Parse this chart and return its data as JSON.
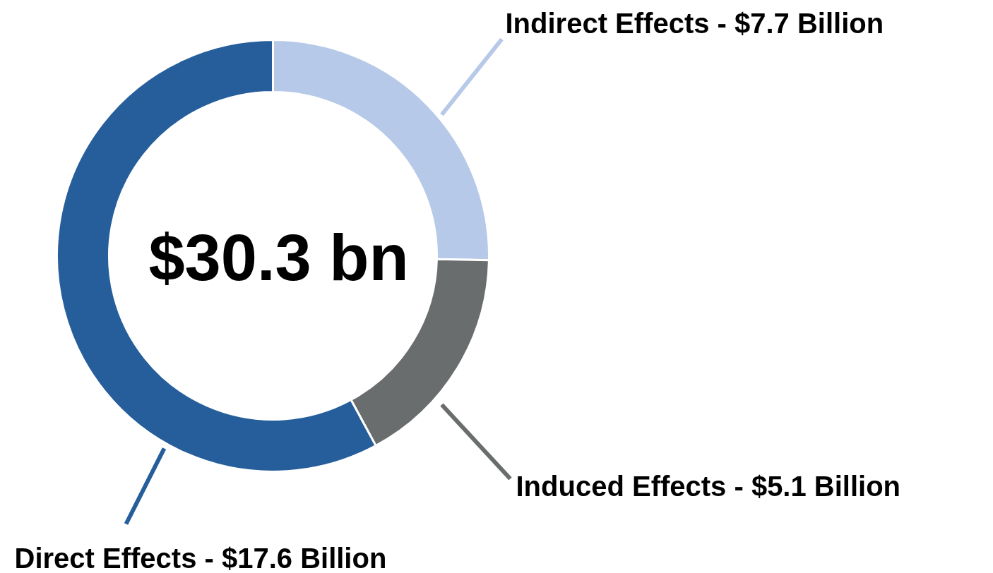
{
  "chart_data": {
    "type": "donut",
    "categories": [
      "Indirect Effects -",
      "Induced Effects -",
      "Direct Effects -"
    ],
    "values": [
      7.7,
      5.1,
      17.6
    ],
    "value_labels": [
      "$7.7 Billion",
      "$5.1 Billion",
      "$17.6 Billion"
    ],
    "colors": [
      "#b7c9e8",
      "#6a6d6e",
      "#265e9b"
    ],
    "annotations": [
      "$30.3 bn"
    ]
  }
}
